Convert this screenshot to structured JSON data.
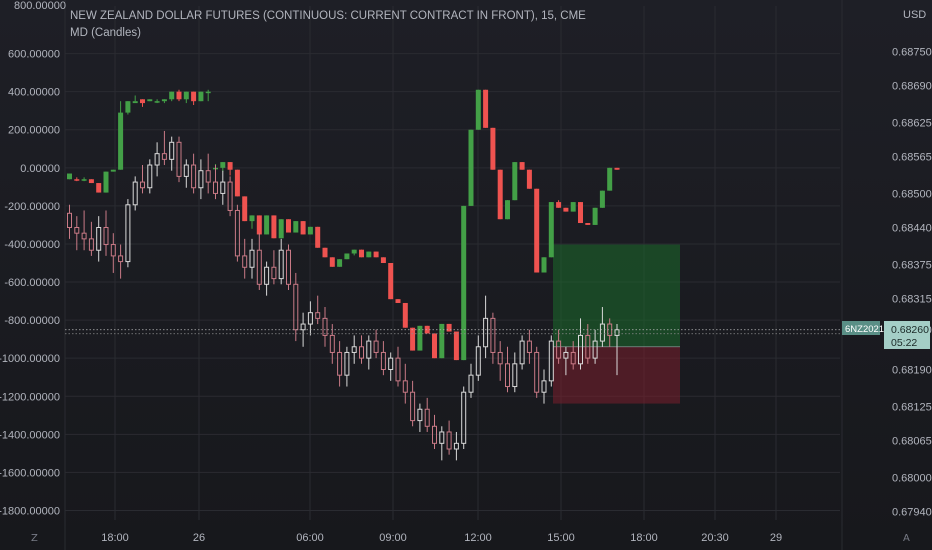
{
  "header": {
    "title": "NEW ZEALAND DOLLAR FUTURES (CONTINUOUS: CURRENT CONTRACT IN FRONT), 15, CME",
    "indicator": "MD (Candles)"
  },
  "currency": "USD",
  "price_label": {
    "symbol": "6NZ2021",
    "price": "0.68260",
    "countdown": "05:22"
  },
  "left_axis_label_top": "800.00000",
  "icons": {
    "left_corner": "Z",
    "right_corner": "A"
  },
  "colors": {
    "up": "#26a69a",
    "green": "#43a047",
    "red": "#ef5350",
    "grid": "#2a2b31",
    "text": "#b2b5be",
    "hollow": "#c9c9c9"
  },
  "chart_data": [
    {
      "type": "candlestick",
      "name": "indicator",
      "title": "MD (Candles)",
      "y_axis": "left",
      "ylim": [
        -1850,
        850
      ],
      "y_ticks": [
        "600.00000",
        "400.00000",
        "200.00000",
        "0.00000",
        "-200.00000",
        "-400.00000",
        "-600.00000",
        "-800.00000",
        "-1000.00000",
        "-1200.00000",
        "-1400.00000",
        "-1600.00000",
        "-1800.00000"
      ],
      "candles_ohlc": [
        [
          -30,
          -30,
          -60,
          -60
        ],
        [
          -60,
          -50,
          -70,
          -60
        ],
        [
          -60,
          -50,
          -70,
          -60
        ],
        [
          -60,
          -60,
          -80,
          -80
        ],
        [
          -80,
          -80,
          -130,
          -130
        ],
        [
          -130,
          -20,
          -130,
          -20
        ],
        [
          -20,
          -10,
          -20,
          -10
        ],
        [
          -10,
          350,
          -10,
          290
        ],
        [
          290,
          350,
          280,
          350
        ],
        [
          350,
          380,
          350,
          340
        ],
        [
          340,
          360,
          320,
          360
        ],
        [
          360,
          360,
          350,
          350
        ],
        [
          350,
          360,
          340,
          350
        ],
        [
          350,
          360,
          340,
          360
        ],
        [
          360,
          400,
          350,
          400
        ],
        [
          400,
          410,
          350,
          360
        ],
        [
          360,
          400,
          340,
          400
        ],
        [
          400,
          400,
          330,
          350
        ],
        [
          350,
          400,
          350,
          400
        ],
        [
          400,
          410,
          350,
          400
        ],
        [
          0,
          20,
          -20,
          0
        ],
        [
          0,
          30,
          -20,
          30
        ],
        [
          30,
          30,
          -40,
          -10
        ],
        [
          -10,
          -10,
          -150,
          -150
        ],
        [
          -150,
          -150,
          -280,
          -280
        ],
        [
          -280,
          -250,
          -320,
          -250
        ],
        [
          -250,
          -250,
          -350,
          -350
        ],
        [
          -350,
          -250,
          -350,
          -250
        ],
        [
          -250,
          -250,
          -370,
          -370
        ],
        [
          -370,
          -270,
          -370,
          -270
        ],
        [
          -270,
          -270,
          -340,
          -340
        ],
        [
          -340,
          -280,
          -340,
          -280
        ],
        [
          -280,
          -280,
          -350,
          -350
        ],
        [
          -350,
          -310,
          -350,
          -310
        ],
        [
          -310,
          -310,
          -420,
          -420
        ],
        [
          -420,
          -420,
          -470,
          -470
        ],
        [
          -470,
          -470,
          -520,
          -520
        ],
        [
          -520,
          -480,
          -520,
          -480
        ],
        [
          -480,
          -450,
          -480,
          -450
        ],
        [
          -450,
          -430,
          -460,
          -430
        ],
        [
          -430,
          -430,
          -470,
          -470
        ],
        [
          -470,
          -440,
          -470,
          -440
        ],
        [
          -440,
          -440,
          -470,
          -470
        ],
        [
          -470,
          -470,
          -500,
          -500
        ],
        [
          -500,
          -500,
          -690,
          -690
        ],
        [
          -690,
          -690,
          -710,
          -710
        ],
        [
          -710,
          -710,
          -840,
          -840
        ],
        [
          -840,
          -840,
          -960,
          -960
        ],
        [
          -960,
          -830,
          -960,
          -830
        ],
        [
          -830,
          -830,
          -870,
          -870
        ],
        [
          -870,
          -870,
          -1000,
          -1000
        ],
        [
          -1000,
          -820,
          -1000,
          -820
        ],
        [
          -820,
          -820,
          -860,
          -860
        ],
        [
          -860,
          -870,
          -1010,
          -1010
        ],
        [
          -1010,
          -200,
          -1010,
          -200
        ],
        [
          -200,
          200,
          -200,
          200
        ],
        [
          200,
          410,
          200,
          410
        ],
        [
          410,
          410,
          210,
          210
        ],
        [
          210,
          210,
          -10,
          -10
        ],
        [
          -10,
          -10,
          -270,
          -270
        ],
        [
          -270,
          -170,
          -270,
          -170
        ],
        [
          -170,
          30,
          -170,
          30
        ],
        [
          30,
          30,
          -10,
          -10
        ],
        [
          -10,
          -10,
          -110,
          -110
        ],
        [
          -110,
          -110,
          -550,
          -550
        ],
        [
          -550,
          -470,
          -550,
          -470
        ],
        [
          -470,
          -180,
          -470,
          -180
        ],
        [
          -180,
          -170,
          -210,
          -210
        ],
        [
          -210,
          -210,
          -230,
          -230
        ],
        [
          -230,
          -180,
          -230,
          -180
        ],
        [
          -180,
          -180,
          -290,
          -290
        ],
        [
          -290,
          -290,
          -300,
          -300
        ],
        [
          -300,
          -210,
          -300,
          -210
        ],
        [
          -210,
          -120,
          -210,
          -120
        ],
        [
          -120,
          0,
          -120,
          0
        ],
        [
          0,
          0,
          -10,
          -10
        ]
      ],
      "candle_colors": [
        "green",
        "red",
        "green",
        "red",
        "red",
        "green",
        "green",
        "green",
        "green",
        "green",
        "red",
        "green",
        "green",
        "green",
        "green",
        "red",
        "green",
        "red",
        "green",
        "green",
        "green",
        "green",
        "red",
        "red",
        "red",
        "green",
        "red",
        "green",
        "red",
        "green",
        "red",
        "green",
        "red",
        "green",
        "red",
        "red",
        "red",
        "green",
        "green",
        "green",
        "red",
        "green",
        "red",
        "red",
        "red",
        "red",
        "red",
        "red",
        "green",
        "red",
        "red",
        "green",
        "red",
        "red",
        "green",
        "green",
        "green",
        "red",
        "red",
        "red",
        "green",
        "green",
        "red",
        "red",
        "red",
        "green",
        "green",
        "red",
        "red",
        "green",
        "red",
        "red",
        "green",
        "green",
        "green",
        "red"
      ]
    },
    {
      "type": "candlestick",
      "name": "6NZ2021",
      "y_axis": "right",
      "ylim": [
        0.67925,
        0.6883
      ],
      "y_ticks": [
        "0.68750",
        "0.68690",
        "0.68625",
        "0.68565",
        "0.68500",
        "0.68440",
        "0.68375",
        "0.68315",
        "0.68260",
        "0.68190",
        "0.68125",
        "0.68065",
        "0.68000",
        "0.67940"
      ],
      "x_ticks": [
        "18:00",
        "26",
        "06:00",
        "09:00",
        "12:00",
        "15:00",
        "18:00",
        "20:30",
        "29"
      ],
      "last_price": 0.6826,
      "candles_ohlc": [
        [
          0.68465,
          0.6848,
          0.6842,
          0.6844
        ],
        [
          0.6844,
          0.6846,
          0.684,
          0.6843
        ],
        [
          0.6843,
          0.6847,
          0.684,
          0.6842
        ],
        [
          0.6842,
          0.6845,
          0.6839,
          0.684
        ],
        [
          0.684,
          0.6846,
          0.6838,
          0.6844
        ],
        [
          0.6844,
          0.6847,
          0.6839,
          0.6841
        ],
        [
          0.6841,
          0.6843,
          0.6836,
          0.6839
        ],
        [
          0.6839,
          0.6841,
          0.6835,
          0.6838
        ],
        [
          0.6838,
          0.6849,
          0.6837,
          0.6848
        ],
        [
          0.6848,
          0.6853,
          0.6847,
          0.6852
        ],
        [
          0.6852,
          0.6855,
          0.685,
          0.6851
        ],
        [
          0.6851,
          0.6856,
          0.685,
          0.6855
        ],
        [
          0.6855,
          0.6859,
          0.6853,
          0.6857
        ],
        [
          0.6857,
          0.6861,
          0.6855,
          0.6856
        ],
        [
          0.6856,
          0.686,
          0.6854,
          0.6859
        ],
        [
          0.6859,
          0.686,
          0.6852,
          0.6853
        ],
        [
          0.6853,
          0.6856,
          0.6851,
          0.6855
        ],
        [
          0.6855,
          0.6857,
          0.685,
          0.6851
        ],
        [
          0.6851,
          0.6856,
          0.6849,
          0.6854
        ],
        [
          0.6854,
          0.6857,
          0.685,
          0.6852
        ],
        [
          0.6852,
          0.6855,
          0.6849,
          0.685
        ],
        [
          0.685,
          0.6854,
          0.6848,
          0.6852
        ],
        [
          0.6852,
          0.6853,
          0.6846,
          0.6847
        ],
        [
          0.6847,
          0.6848,
          0.6838,
          0.6839
        ],
        [
          0.6839,
          0.6842,
          0.6835,
          0.6837
        ],
        [
          0.6837,
          0.6842,
          0.6835,
          0.684
        ],
        [
          0.684,
          0.6843,
          0.6833,
          0.6834
        ],
        [
          0.6834,
          0.6838,
          0.6832,
          0.6837
        ],
        [
          0.6837,
          0.684,
          0.6834,
          0.6835
        ],
        [
          0.6835,
          0.6842,
          0.6834,
          0.684
        ],
        [
          0.684,
          0.6841,
          0.6833,
          0.6834
        ],
        [
          0.6834,
          0.6836,
          0.6824,
          0.6826
        ],
        [
          0.6826,
          0.6829,
          0.6823,
          0.6827
        ],
        [
          0.6827,
          0.6831,
          0.6825,
          0.6829
        ],
        [
          0.6829,
          0.6832,
          0.6827,
          0.6828
        ],
        [
          0.6828,
          0.683,
          0.6823,
          0.6825
        ],
        [
          0.6825,
          0.6827,
          0.682,
          0.6822
        ],
        [
          0.6822,
          0.6824,
          0.6816,
          0.6818
        ],
        [
          0.6818,
          0.6823,
          0.6816,
          0.6822
        ],
        [
          0.6822,
          0.6825,
          0.682,
          0.6823
        ],
        [
          0.6823,
          0.6825,
          0.682,
          0.6821
        ],
        [
          0.6821,
          0.6825,
          0.6819,
          0.6824
        ],
        [
          0.6824,
          0.6826,
          0.6821,
          0.6822
        ],
        [
          0.6822,
          0.6824,
          0.6818,
          0.6819
        ],
        [
          0.6819,
          0.6822,
          0.6817,
          0.6821
        ],
        [
          0.6821,
          0.6823,
          0.6816,
          0.6817
        ],
        [
          0.6817,
          0.682,
          0.6813,
          0.6815
        ],
        [
          0.6815,
          0.6817,
          0.6809,
          0.681
        ],
        [
          0.681,
          0.6813,
          0.6808,
          0.6812
        ],
        [
          0.6812,
          0.6814,
          0.6808,
          0.6809
        ],
        [
          0.6809,
          0.6811,
          0.6805,
          0.6806
        ],
        [
          0.6806,
          0.6809,
          0.6803,
          0.6808
        ],
        [
          0.6808,
          0.681,
          0.6804,
          0.6805
        ],
        [
          0.6805,
          0.6808,
          0.6803,
          0.6806
        ],
        [
          0.6806,
          0.6816,
          0.6805,
          0.6815
        ],
        [
          0.6815,
          0.682,
          0.6814,
          0.6818
        ],
        [
          0.6818,
          0.6825,
          0.6817,
          0.6823
        ],
        [
          0.6823,
          0.6832,
          0.6821,
          0.6828
        ],
        [
          0.6828,
          0.6829,
          0.682,
          0.6822
        ],
        [
          0.6822,
          0.6824,
          0.6817,
          0.682
        ],
        [
          0.682,
          0.6823,
          0.6815,
          0.6816
        ],
        [
          0.6816,
          0.6822,
          0.6815,
          0.682
        ],
        [
          0.682,
          0.6825,
          0.6819,
          0.6824
        ],
        [
          0.6824,
          0.6826,
          0.682,
          0.6822
        ],
        [
          0.6822,
          0.6823,
          0.6814,
          0.6815
        ],
        [
          0.6815,
          0.6819,
          0.6813,
          0.6817
        ],
        [
          0.6817,
          0.6825,
          0.6816,
          0.6824
        ],
        [
          0.6824,
          0.6826,
          0.682,
          0.6821
        ],
        [
          0.6821,
          0.6823,
          0.6818,
          0.6822
        ],
        [
          0.6822,
          0.6824,
          0.6819,
          0.682
        ],
        [
          0.682,
          0.6828,
          0.6819,
          0.6825
        ],
        [
          0.6825,
          0.6827,
          0.682,
          0.6821
        ],
        [
          0.6821,
          0.6826,
          0.682,
          0.6824
        ],
        [
          0.6824,
          0.683,
          0.6823,
          0.6827
        ],
        [
          0.6827,
          0.6828,
          0.6823,
          0.6825
        ],
        [
          0.6825,
          0.6827,
          0.6818,
          0.6826
        ]
      ]
    }
  ],
  "position_box": {
    "entry": 0.6823,
    "target": 0.6841,
    "stop": 0.6813
  }
}
